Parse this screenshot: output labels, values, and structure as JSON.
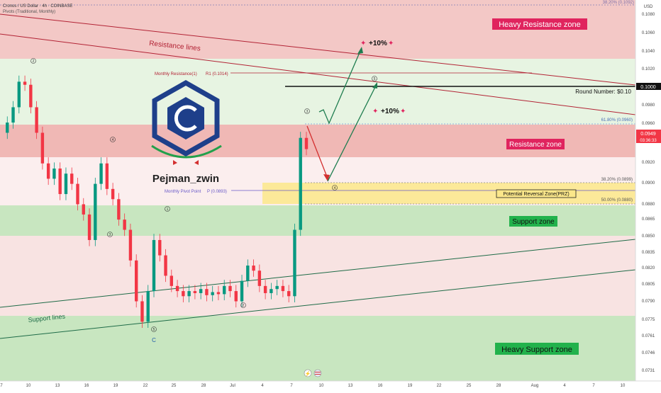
{
  "header": {
    "symbol_line": "Cronos / US Dollar · 4h · COINBASE",
    "indicator_line": "Pivots (Traditional, Monthly)"
  },
  "price_axis": {
    "currency": "USD",
    "ticks": [
      "0.1080",
      "0.1060",
      "0.1040",
      "0.1020",
      "0.1000",
      "0.0980",
      "0.0960",
      "0.0940",
      "0.0920",
      "0.0900",
      "0.0880",
      "0.0865",
      "0.0850",
      "0.0835",
      "0.0820",
      "0.0805",
      "0.0790",
      "0.0775",
      "0.0761",
      "0.0746",
      "0.0731"
    ],
    "current_price": "0.0949",
    "countdown": "03:36:33",
    "round_number_tag": "0.1000"
  },
  "time_axis": {
    "ticks": [
      "7",
      "10",
      "13",
      "16",
      "19",
      "22",
      "25",
      "28",
      "Jul",
      "4",
      "7",
      "10",
      "13",
      "16",
      "19",
      "22",
      "25",
      "28",
      "Aug",
      "4",
      "7",
      "10"
    ]
  },
  "zones": {
    "heavy_resistance": "Heavy Resistance zone",
    "resistance": "Resistance zone",
    "prz": "Potential Reversal Zone(PRZ)",
    "support": "Support zone",
    "heavy_support": "Heavy Support zone"
  },
  "labels": {
    "resistance_lines": "Resistance lines",
    "support_lines": "Support lines",
    "monthly_r1": "Monthly Resistance(1)",
    "r1_value": "R1 (0.1014)",
    "monthly_pivot": "Monthly Pivot Point",
    "pivot_value": "P (0.0893)",
    "round_number": "Round Number: $0.10",
    "target_a": "+10%",
    "target_b": "+10%",
    "author": "Pejman_zwin",
    "fib_top": "38.20% (0.1092)",
    "fib_618": "61.80% (0.0960)",
    "fib_382": "38.20% (0.0899)",
    "fib_500": "50.00% (0.0880)"
  },
  "waves": {
    "w1": "1",
    "w2": "2",
    "w3": "3",
    "w4": "4",
    "w5": "5",
    "old2": "2",
    "old3": "3",
    "old4": "4",
    "old5": "5",
    "oldC": "C"
  },
  "colors": {
    "red_zone": "#f3c8c6",
    "red_zone_dark": "#f0aeab",
    "green_zone": "#c8e6c0",
    "light_green": "#e7f4e2",
    "prz": "#fbe78a",
    "label_red": "#e0245e",
    "label_green": "#22b24c",
    "candle_up": "#089981",
    "candle_down": "#f23645",
    "resistance_line": "#b22234",
    "support_line": "#1e6b47",
    "logo": "#1e3f8a"
  },
  "chart_data": {
    "type": "candlestick",
    "title": "Cronos / US Dollar · 4h · COINBASE",
    "y_unit": "USD",
    "ylim": [
      0.0722,
      0.1095
    ],
    "x_period": "June–August",
    "last_price": 0.0949,
    "zones": [
      {
        "name": "Heavy Resistance zone",
        "from": 0.1031,
        "to": 0.1095
      },
      {
        "name": "Resistance zone",
        "from": 0.0923,
        "to": 0.096
      },
      {
        "name": "Potential Reversal Zone(PRZ)",
        "from": 0.088,
        "to": 0.0901
      },
      {
        "name": "Support zone",
        "from": 0.0849,
        "to": 0.0878
      },
      {
        "name": "Heavy Support zone",
        "from": 0.0722,
        "to": 0.0778
      }
    ],
    "levels": [
      {
        "name": "Monthly Resistance(1)",
        "value": 0.1014
      },
      {
        "name": "Round Number",
        "value": 0.1
      },
      {
        "name": "Monthly Pivot Point",
        "value": 0.0893
      },
      {
        "name": "Fib 61.80%",
        "value": 0.096
      },
      {
        "name": "Fib 38.20%",
        "value": 0.0899
      },
      {
        "name": "Fib 50.00%",
        "value": 0.088
      }
    ],
    "price_path": [
      0.0965,
      0.0975,
      0.099,
      0.1015,
      0.1012,
      0.099,
      0.0965,
      0.0935,
      0.092,
      0.093,
      0.0905,
      0.0925,
      0.0915,
      0.0895,
      0.0885,
      0.086,
      0.0915,
      0.0935,
      0.091,
      0.09,
      0.088,
      0.087,
      0.084,
      0.08,
      0.078,
      0.081,
      0.086,
      0.0845,
      0.0825,
      0.0815,
      0.081,
      0.0805,
      0.081,
      0.0808,
      0.0812,
      0.0806,
      0.0809,
      0.0807,
      0.0815,
      0.081,
      0.08,
      0.082,
      0.0835,
      0.083,
      0.0815,
      0.0808,
      0.0812,
      0.0815,
      0.081,
      0.0805,
      0.087,
      0.096,
      0.0949
    ]
  }
}
